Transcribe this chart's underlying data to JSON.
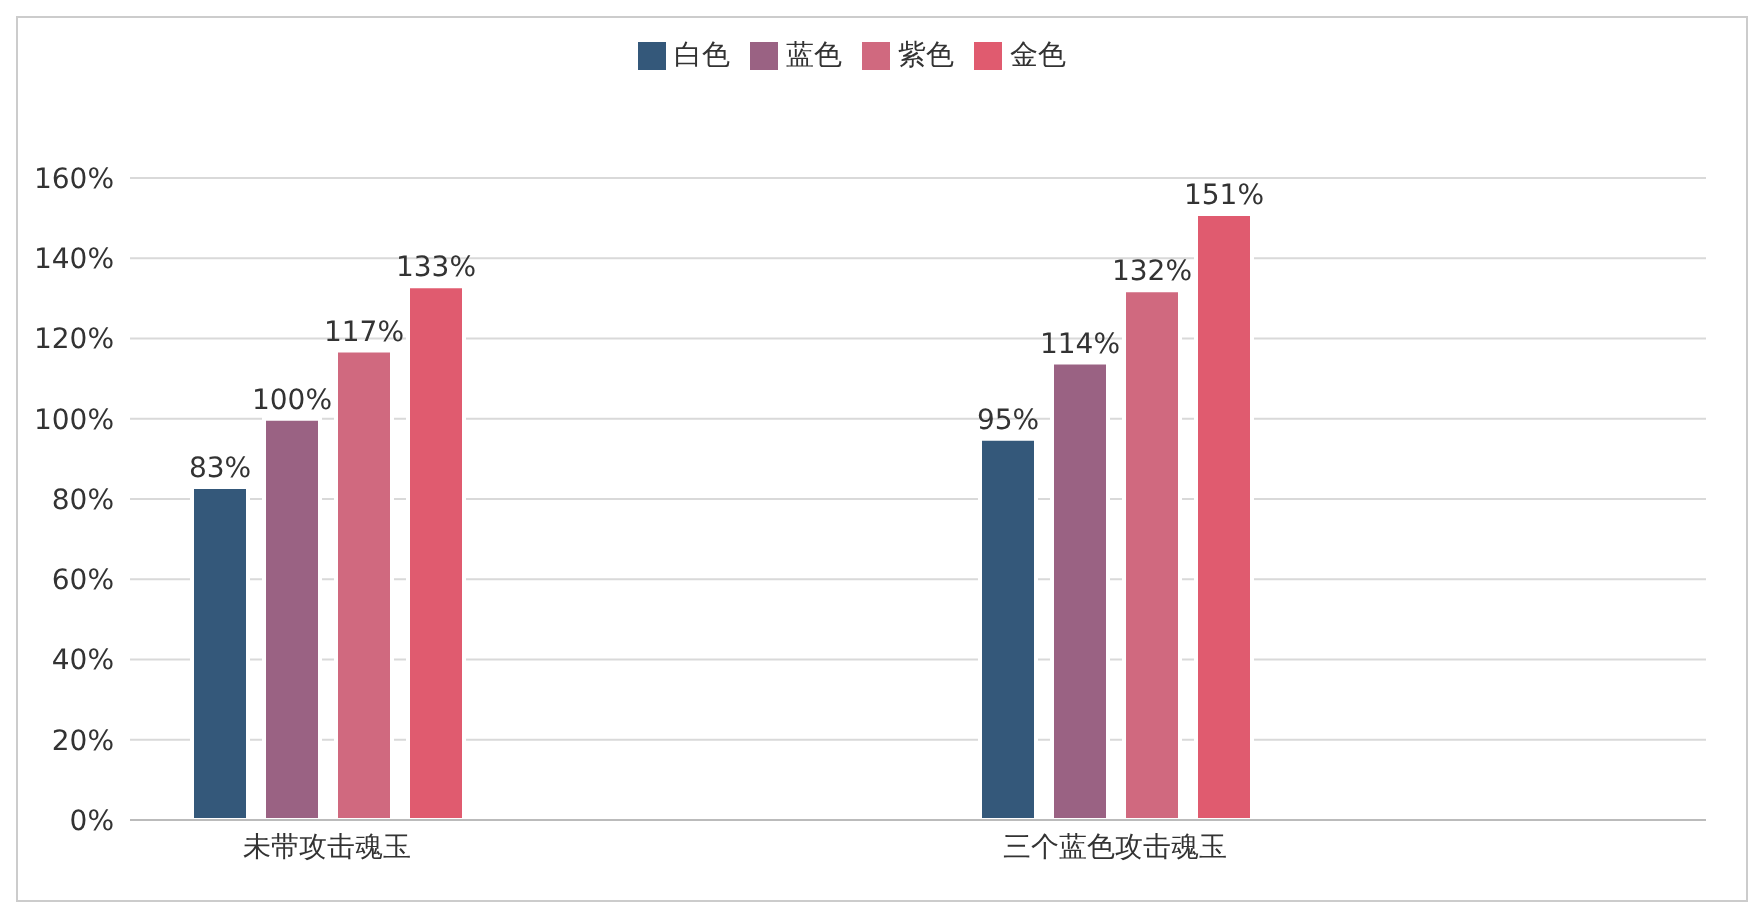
{
  "chart_data": {
    "type": "bar",
    "categories": [
      "未带攻击魂玉",
      null,
      "三个蓝色攻击魂玉",
      null
    ],
    "series": [
      {
        "name": "白色",
        "color": "#34587a",
        "values": [
          83,
          null,
          95,
          null
        ],
        "value_labels": [
          "83%",
          null,
          "95%",
          null
        ]
      },
      {
        "name": "蓝色",
        "color": "#9a6283",
        "values": [
          100,
          null,
          114,
          null
        ],
        "value_labels": [
          "100%",
          null,
          "114%",
          null
        ]
      },
      {
        "name": "紫色",
        "color": "#d0697f",
        "values": [
          117,
          null,
          132,
          null
        ],
        "value_labels": [
          "117%",
          null,
          "132%",
          null
        ]
      },
      {
        "name": "金色",
        "color": "#e05b6f",
        "values": [
          133,
          null,
          151,
          null
        ],
        "value_labels": [
          "133%",
          null,
          "151%",
          null
        ]
      }
    ],
    "ylim": [
      0,
      160
    ],
    "yticks": [
      {
        "value": 0,
        "label": "0%"
      },
      {
        "value": 20,
        "label": "20%"
      },
      {
        "value": 40,
        "label": "40%"
      },
      {
        "value": 60,
        "label": "60%"
      },
      {
        "value": 80,
        "label": "80%"
      },
      {
        "value": 100,
        "label": "100%"
      },
      {
        "value": 120,
        "label": "120%"
      },
      {
        "value": 140,
        "label": "140%"
      },
      {
        "value": 160,
        "label": "160%"
      }
    ],
    "grid": "y",
    "legend": "top"
  }
}
